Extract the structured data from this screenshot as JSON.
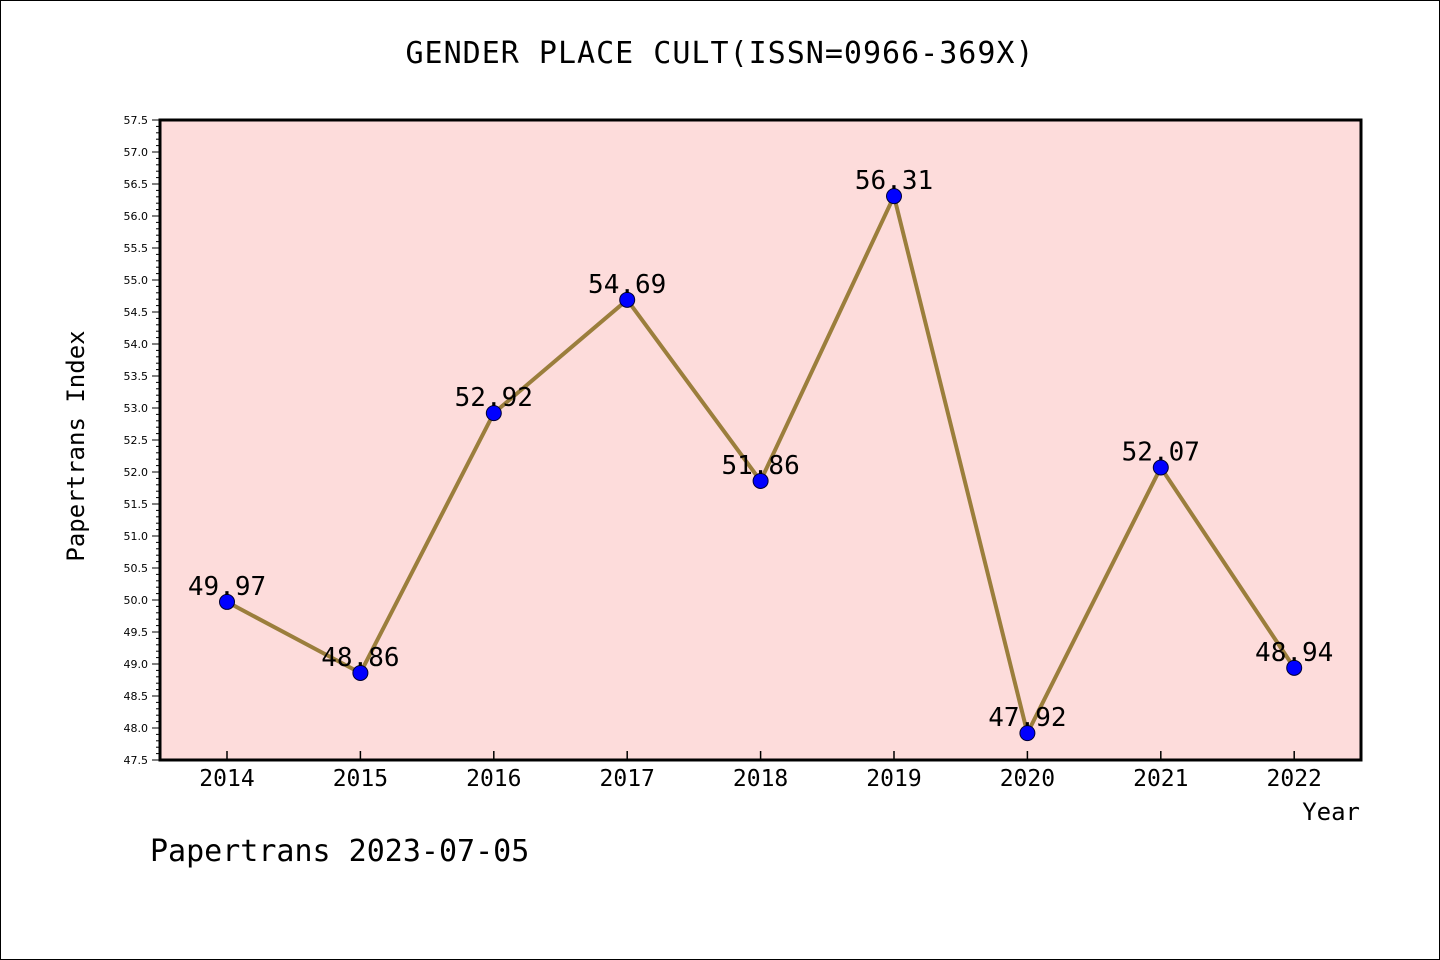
{
  "colors": {
    "plot_background": "#fddcdb",
    "line": "#9b7e3c",
    "marker": "#0000ff",
    "axis": "#000000"
  },
  "header": {
    "title": "GENDER PLACE CULT(ISSN=0966-369X)"
  },
  "footer": {
    "text": "Papertrans 2023-07-05"
  },
  "chart_data": {
    "type": "line",
    "title": "GENDER PLACE CULT(ISSN=0966-369X)",
    "xlabel": "Year",
    "ylabel": "Papertrans Index",
    "categories": [
      "2014",
      "2015",
      "2016",
      "2017",
      "2018",
      "2019",
      "2020",
      "2021",
      "2022"
    ],
    "series": [
      {
        "values": [
          49.97,
          48.86,
          52.92,
          54.69,
          51.86,
          56.31,
          47.92,
          52.07,
          48.94
        ],
        "labels": [
          "49.97",
          "48.86",
          "52.92",
          "54.69",
          "51.86",
          "56.31",
          "47.92",
          "52.07",
          "48.94"
        ]
      }
    ],
    "ylim": [
      47.5,
      57.5
    ],
    "yticks": [
      "47.5",
      "48.0",
      "48.5",
      "49.0",
      "49.5",
      "50.0",
      "50.5",
      "51.0",
      "51.5",
      "52.0",
      "52.5",
      "53.0",
      "53.5",
      "54.0",
      "54.5",
      "55.0",
      "55.5",
      "56.0",
      "56.5",
      "57.0",
      "57.5"
    ],
    "minor_tick_step": 0.1,
    "grid": false,
    "legend": "none"
  }
}
